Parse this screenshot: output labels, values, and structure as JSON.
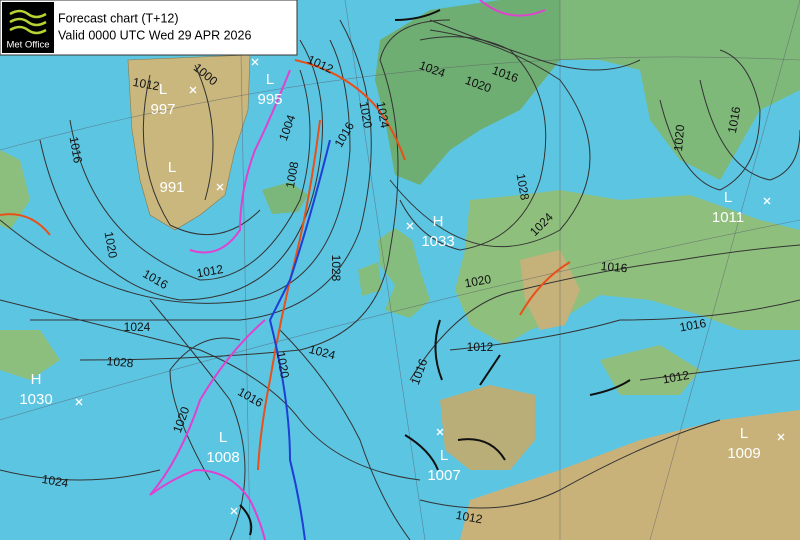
{
  "header": {
    "logo": "Met Office",
    "title": "Forecast chart (T+12)",
    "valid": "Valid 0000 UTC Wed 29 APR 2026"
  },
  "pressure_centres": [
    {
      "type": "L",
      "value": 997
    },
    {
      "type": "L",
      "value": 995
    },
    {
      "type": "L",
      "value": 991
    },
    {
      "type": "H",
      "value": 1033
    },
    {
      "type": "L",
      "value": 1011
    },
    {
      "type": "H",
      "value": 1030
    },
    {
      "type": "L",
      "value": 1008
    },
    {
      "type": "L",
      "value": 1007
    },
    {
      "type": "L",
      "value": 1009
    }
  ],
  "isobar_labels": [
    1000,
    1012,
    1016,
    1020,
    1016,
    1012,
    1008,
    1004,
    1012,
    1020,
    1024,
    1016,
    1024,
    1020,
    1016,
    1028,
    1024,
    1028,
    1020,
    1016,
    1016,
    1016,
    1012,
    1012,
    1012,
    1024,
    1028,
    1024,
    1020,
    1016,
    1020,
    1024,
    1020,
    1016
  ]
}
